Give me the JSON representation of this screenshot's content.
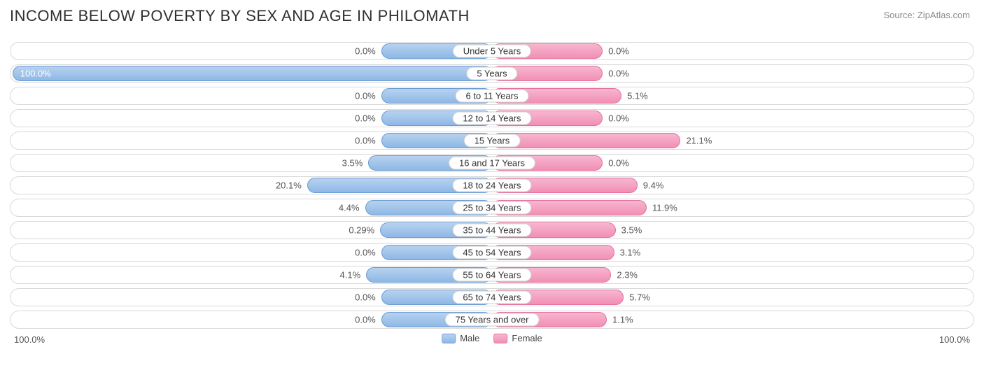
{
  "title": "Income Below Poverty by Sex and Age in Philomath",
  "source": "Source: ZipAtlas.com",
  "axis": {
    "left": "100.0%",
    "right": "100.0%"
  },
  "legend": {
    "male": "Male",
    "female": "Female"
  },
  "colors": {
    "male_fill_top": "#b7d2f0",
    "male_fill_bottom": "#8eb8e5",
    "male_border": "#6a9bd1",
    "female_fill_top": "#f7b6cf",
    "female_fill_bottom": "#f18fb5",
    "female_border": "#e56f9d",
    "track_border": "#d9d9d9",
    "text": "#555555",
    "title_color": "#303030"
  },
  "chart": {
    "type": "diverging-bar",
    "min_bar_pct": 11.5,
    "axis_max": 100.0,
    "rows": [
      {
        "label": "Under 5 Years",
        "male": 0.0,
        "female": 0.0,
        "male_text": "0.0%",
        "female_text": "0.0%"
      },
      {
        "label": "5 Years",
        "male": 100.0,
        "female": 0.0,
        "male_text": "100.0%",
        "female_text": "0.0%"
      },
      {
        "label": "6 to 11 Years",
        "male": 0.0,
        "female": 5.1,
        "male_text": "0.0%",
        "female_text": "5.1%"
      },
      {
        "label": "12 to 14 Years",
        "male": 0.0,
        "female": 0.0,
        "male_text": "0.0%",
        "female_text": "0.0%"
      },
      {
        "label": "15 Years",
        "male": 0.0,
        "female": 21.1,
        "male_text": "0.0%",
        "female_text": "21.1%"
      },
      {
        "label": "16 and 17 Years",
        "male": 3.5,
        "female": 0.0,
        "male_text": "3.5%",
        "female_text": "0.0%"
      },
      {
        "label": "18 to 24 Years",
        "male": 20.1,
        "female": 9.4,
        "male_text": "20.1%",
        "female_text": "9.4%"
      },
      {
        "label": "25 to 34 Years",
        "male": 4.4,
        "female": 11.9,
        "male_text": "4.4%",
        "female_text": "11.9%"
      },
      {
        "label": "35 to 44 Years",
        "male": 0.29,
        "female": 3.5,
        "male_text": "0.29%",
        "female_text": "3.5%"
      },
      {
        "label": "45 to 54 Years",
        "male": 0.0,
        "female": 3.1,
        "male_text": "0.0%",
        "female_text": "3.1%"
      },
      {
        "label": "55 to 64 Years",
        "male": 4.1,
        "female": 2.3,
        "male_text": "4.1%",
        "female_text": "2.3%"
      },
      {
        "label": "65 to 74 Years",
        "male": 0.0,
        "female": 5.7,
        "male_text": "0.0%",
        "female_text": "5.7%"
      },
      {
        "label": "75 Years and over",
        "male": 0.0,
        "female": 1.1,
        "male_text": "0.0%",
        "female_text": "1.1%"
      }
    ]
  }
}
